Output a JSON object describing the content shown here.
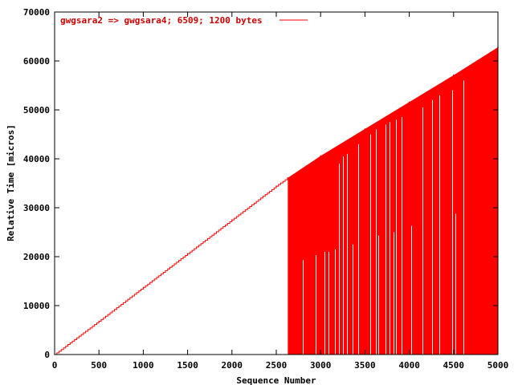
{
  "chart_data": {
    "type": "line",
    "ylabel": "Relative Time [micros]",
    "xlabel": "Sequence Number",
    "xlim": [
      0,
      5000
    ],
    "ylim": [
      0,
      70000
    ],
    "x_ticks": [
      "0",
      "500",
      "1000",
      "1500",
      "2000",
      "2500",
      "3000",
      "3500",
      "4000",
      "4500",
      "5000"
    ],
    "y_ticks": [
      "0",
      "10000",
      "20000",
      "30000",
      "40000",
      "50000",
      "60000",
      "70000"
    ],
    "grid": false,
    "legend_position": "top-left",
    "series": [
      {
        "name": "gwgsara2 => gwgsara4; 6509; 1200 bytes",
        "color": "#ff0000",
        "x": [
          0,
          500,
          1000,
          1500,
          2000,
          2500,
          2630,
          3000,
          3500,
          4000,
          4500,
          5000
        ],
        "values": [
          0,
          6800,
          13700,
          20600,
          27500,
          34400,
          36100,
          40600,
          46100,
          51600,
          57100,
          62800
        ]
      }
    ],
    "filled_region": {
      "x_start": 2630,
      "x_end": 5000,
      "y_floor": 0,
      "color": "#ff0000",
      "gap_x": [
        2800,
        2940,
        3040,
        3090,
        3160,
        3210,
        3250,
        3300,
        3360,
        3420,
        3560,
        3620,
        3650,
        3730,
        3780,
        3820,
        3850,
        3910,
        4020,
        4150,
        4260,
        4340,
        4480,
        4520,
        4610
      ],
      "gap_top_y": [
        19300,
        20300,
        21000,
        21000,
        21500,
        39000,
        40500,
        41000,
        22500,
        43000,
        45000,
        46000,
        24300,
        47000,
        47500,
        25000,
        48000,
        48500,
        26300,
        50500,
        52000,
        53000,
        54000,
        28800,
        56000
      ]
    }
  }
}
